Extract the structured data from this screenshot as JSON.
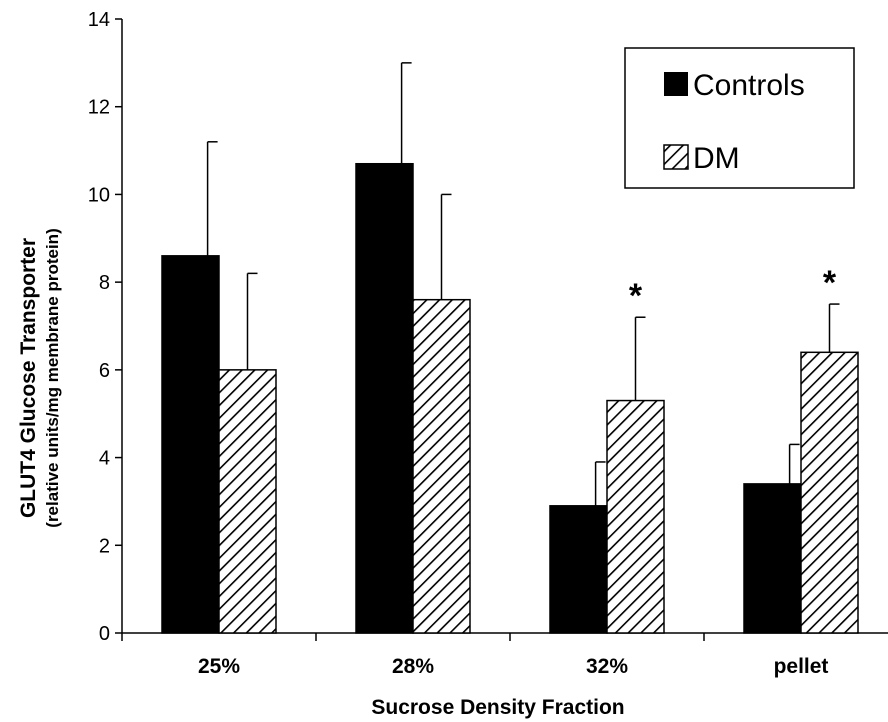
{
  "chart_data": {
    "type": "bar",
    "categories": [
      "25%",
      "28%",
      "32%",
      "pellet"
    ],
    "series": [
      {
        "name": "Controls",
        "values": [
          8.6,
          10.7,
          2.9,
          3.4
        ],
        "errors": [
          2.6,
          2.3,
          1.0,
          0.9
        ],
        "color": "#000000",
        "pattern": "solid"
      },
      {
        "name": "DM",
        "values": [
          6.0,
          7.6,
          5.3,
          6.4
        ],
        "errors": [
          2.2,
          2.4,
          1.9,
          1.1
        ],
        "color": "#000000",
        "pattern": "diagonal-hatch"
      }
    ],
    "significance": [
      {
        "category": "32%",
        "series": "DM",
        "text": "*"
      },
      {
        "category": "pellet",
        "series": "DM",
        "text": "*"
      }
    ],
    "xlabel": "Sucrose Density Fraction",
    "ylabel": "GLUT4 Glucose Transporter",
    "ylabel_sub": "(relative units/mg membrane protein)",
    "ylim": [
      0,
      14
    ],
    "yticks": [
      0,
      2,
      4,
      6,
      8,
      10,
      12,
      14
    ],
    "legend_position": "top-right",
    "grid": false
  }
}
